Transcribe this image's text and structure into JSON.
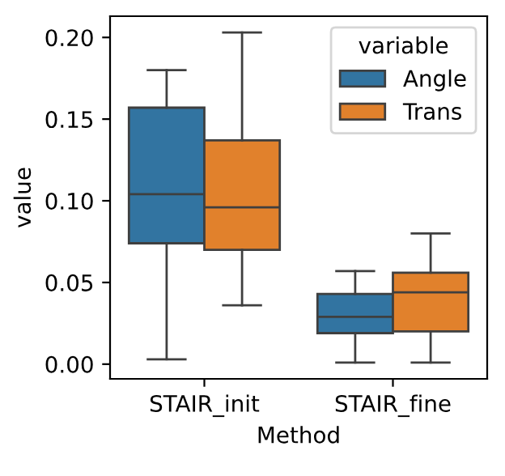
{
  "chart_data": {
    "type": "box",
    "xlabel": "Method",
    "ylabel": "value",
    "legend_title": "variable",
    "legend": "top right",
    "categories": [
      "STAIR_init",
      "STAIR_fine"
    ],
    "ylim": [
      -0.009,
      0.213
    ],
    "yticks": [
      {
        "value": 0,
        "label": "0.00"
      },
      {
        "value": 0.05,
        "label": "0.05"
      },
      {
        "value": 0.1,
        "label": "0.10"
      },
      {
        "value": 0.15,
        "label": "0.15"
      },
      {
        "value": 0.2,
        "label": "0.20"
      }
    ],
    "grid": false,
    "series": [
      {
        "name": "Angle",
        "color": "#3274a1",
        "boxes": [
          {
            "low": 0.003,
            "q1": 0.074,
            "median": 0.104,
            "q3": 0.157,
            "high": 0.18
          },
          {
            "low": 0.001,
            "q1": 0.019,
            "median": 0.029,
            "q3": 0.043,
            "high": 0.057
          }
        ]
      },
      {
        "name": "Trans",
        "color": "#e1812c",
        "boxes": [
          {
            "low": 0.036,
            "q1": 0.07,
            "median": 0.096,
            "q3": 0.137,
            "high": 0.203
          },
          {
            "low": 0.001,
            "q1": 0.02,
            "median": 0.044,
            "q3": 0.056,
            "high": 0.08
          }
        ]
      }
    ]
  }
}
